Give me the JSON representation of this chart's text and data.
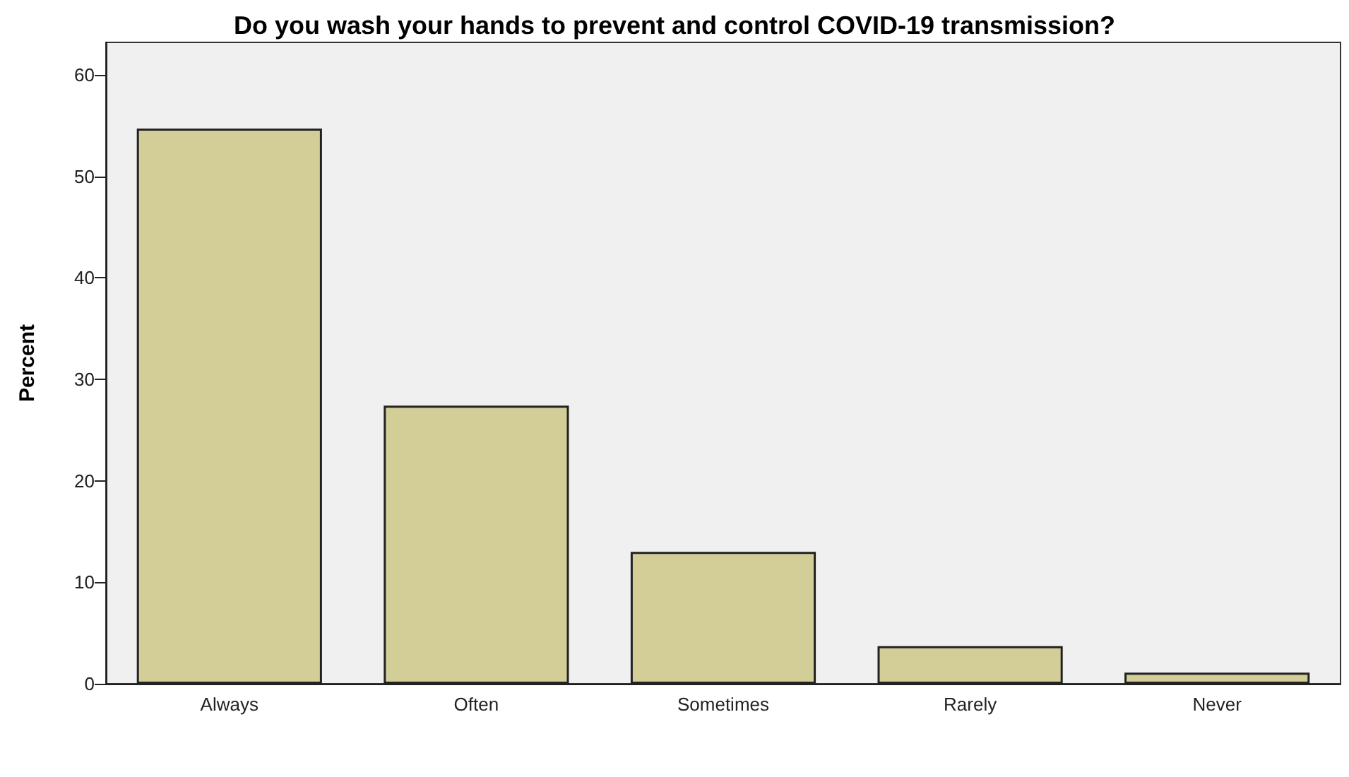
{
  "chart_data": {
    "type": "bar",
    "title": "Do you wash your hands to prevent and control COVID-19 transmission?",
    "ylabel": "Percent",
    "categories": [
      "Always",
      "Often",
      "Sometimes",
      "Rarely",
      "Never"
    ],
    "values": [
      54.7,
      27.4,
      13.0,
      3.7,
      1.1
    ],
    "color": "#d3cd98",
    "ylim": [
      0,
      63.2
    ],
    "yticks": [
      0,
      10,
      20,
      30,
      40,
      50,
      60
    ],
    "grid": false
  }
}
